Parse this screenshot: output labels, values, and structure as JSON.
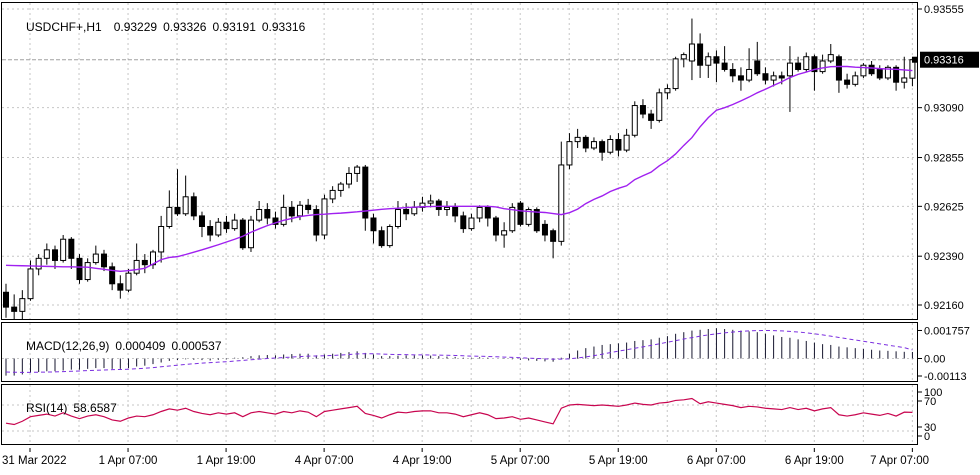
{
  "header": {
    "symbol": "USDCHF+,H1",
    "open": "0.93229",
    "high": "0.93326",
    "low": "0.93191",
    "close": "0.93316"
  },
  "indicators": {
    "macd": {
      "label": "MACD(12,26,9)",
      "main_value": "0.000409",
      "signal_value": "0.000537"
    },
    "rsi": {
      "label": "RSI(14)",
      "value": "58.6587"
    }
  },
  "price_axis": {
    "ticks": [
      {
        "label": "0.93555",
        "value": 0.93555
      },
      {
        "label": "0.93090",
        "value": 0.9309
      },
      {
        "label": "0.92855",
        "value": 0.92855
      },
      {
        "label": "0.92625",
        "value": 0.92625
      },
      {
        "label": "0.92390",
        "value": 0.9239
      },
      {
        "label": "0.92160",
        "value": 0.9216
      }
    ],
    "current": {
      "label": "0.93316",
      "value": 0.93316
    }
  },
  "macd_axis": {
    "ticks": [
      {
        "label": "0.001757",
        "value": 0.001757
      },
      {
        "label": "0.00",
        "value": 0
      },
      {
        "label": "-0.00113",
        "value": -0.00113
      }
    ]
  },
  "rsi_axis": {
    "ticks": [
      {
        "label": "100",
        "value": 100
      },
      {
        "label": "70",
        "value": 70
      },
      {
        "label": "30",
        "value": 30
      },
      {
        "label": "0",
        "value": 0
      }
    ],
    "gridlines": [
      70,
      30
    ]
  },
  "time_axis": {
    "labels": [
      "31 Mar 2022",
      "1 Apr 07:00",
      "1 Apr 19:00",
      "4 Apr 07:00",
      "4 Apr 19:00",
      "5 Apr 07:00",
      "5 Apr 19:00",
      "6 Apr 07:00",
      "6 Apr 19:00",
      "7 Apr 07:00"
    ]
  },
  "colors": {
    "background": "#ffffff",
    "border": "#000000",
    "grid": "#c6c6c6",
    "candle_up_fill": "#ffffff",
    "candle_down_fill": "#000000",
    "candle_stroke": "#000000",
    "ma_line": "#a020f0",
    "macd_histogram": "#16162e",
    "macd_signal": "#7b2fe0",
    "rsi_line": "#c8054f",
    "price_line": "#a0a0a0",
    "price_badge_bg": "#000000",
    "price_badge_text": "#ffffff",
    "axis_text": "#000000"
  },
  "chart_data": [
    {
      "type": "candlestick",
      "title": "USDCHF+ H1",
      "ohlc_current": {
        "open": 0.93229,
        "high": 0.93326,
        "low": 0.93191,
        "close": 0.93316
      },
      "ylim": [
        0.92094,
        0.93583
      ],
      "y_ticks": [
        0.93555,
        0.9309,
        0.92855,
        0.92625,
        0.9239,
        0.9216
      ],
      "grid": true,
      "candles": [
        [
          0.9222,
          0.9226,
          0.921,
          0.9215
        ],
        [
          0.9215,
          0.9221,
          0.9208,
          0.9213
        ],
        [
          0.9213,
          0.9223,
          0.9209,
          0.9219
        ],
        [
          0.9219,
          0.9237,
          0.9218,
          0.9233
        ],
        [
          0.9233,
          0.924,
          0.923,
          0.9238
        ],
        [
          0.9238,
          0.9245,
          0.9235,
          0.9242
        ],
        [
          0.9242,
          0.9244,
          0.9233,
          0.9237
        ],
        [
          0.9237,
          0.9249,
          0.9236,
          0.9247
        ],
        [
          0.9247,
          0.9248,
          0.9233,
          0.9238
        ],
        [
          0.9238,
          0.924,
          0.9226,
          0.9228
        ],
        [
          0.9228,
          0.9238,
          0.9227,
          0.9236
        ],
        [
          0.9236,
          0.9244,
          0.9235,
          0.924
        ],
        [
          0.924,
          0.9242,
          0.9232,
          0.9234
        ],
        [
          0.9234,
          0.9236,
          0.9223,
          0.9226
        ],
        [
          0.9226,
          0.923,
          0.9219,
          0.9223
        ],
        [
          0.9223,
          0.9233,
          0.9222,
          0.9231
        ],
        [
          0.9231,
          0.9245,
          0.923,
          0.9237
        ],
        [
          0.9237,
          0.924,
          0.9231,
          0.9235
        ],
        [
          0.9235,
          0.9242,
          0.9233,
          0.9241
        ],
        [
          0.9241,
          0.9258,
          0.9236,
          0.9253
        ],
        [
          0.9253,
          0.927,
          0.9252,
          0.9262
        ],
        [
          0.9262,
          0.928,
          0.9258,
          0.9259
        ],
        [
          0.9259,
          0.9277,
          0.9258,
          0.9267
        ],
        [
          0.9267,
          0.9269,
          0.9256,
          0.9258
        ],
        [
          0.9258,
          0.926,
          0.9248,
          0.9253
        ],
        [
          0.9253,
          0.9256,
          0.9246,
          0.9249
        ],
        [
          0.9249,
          0.9257,
          0.9248,
          0.9255
        ],
        [
          0.9255,
          0.9258,
          0.925,
          0.9252
        ],
        [
          0.9252,
          0.9259,
          0.9251,
          0.9256
        ],
        [
          0.9256,
          0.9257,
          0.9242,
          0.9243
        ],
        [
          0.9243,
          0.9258,
          0.9241,
          0.9256
        ],
        [
          0.9256,
          0.9265,
          0.9255,
          0.9261
        ],
        [
          0.9261,
          0.9264,
          0.9254,
          0.9257
        ],
        [
          0.9257,
          0.926,
          0.9252,
          0.9254
        ],
        [
          0.9254,
          0.9268,
          0.9253,
          0.9262
        ],
        [
          0.9262,
          0.9265,
          0.9255,
          0.9258
        ],
        [
          0.9258,
          0.9265,
          0.9256,
          0.9263
        ],
        [
          0.9263,
          0.9266,
          0.9259,
          0.9261
        ],
        [
          0.9261,
          0.9263,
          0.9246,
          0.9249
        ],
        [
          0.9249,
          0.9268,
          0.9247,
          0.9266
        ],
        [
          0.9266,
          0.9272,
          0.9264,
          0.927
        ],
        [
          0.927,
          0.9274,
          0.9267,
          0.9273
        ],
        [
          0.9273,
          0.9281,
          0.9271,
          0.9278
        ],
        [
          0.9278,
          0.9282,
          0.9274,
          0.9281
        ],
        [
          0.9281,
          0.9282,
          0.9251,
          0.9257
        ],
        [
          0.9257,
          0.9259,
          0.9245,
          0.9251
        ],
        [
          0.9251,
          0.9253,
          0.9243,
          0.9244
        ],
        [
          0.9244,
          0.9254,
          0.9243,
          0.9253
        ],
        [
          0.9253,
          0.9265,
          0.9252,
          0.9261
        ],
        [
          0.9261,
          0.9264,
          0.9256,
          0.9259
        ],
        [
          0.9259,
          0.9265,
          0.9258,
          0.9262
        ],
        [
          0.9262,
          0.9267,
          0.926,
          0.9264
        ],
        [
          0.9264,
          0.9268,
          0.9262,
          0.9265
        ],
        [
          0.9265,
          0.9266,
          0.9258,
          0.9261
        ],
        [
          0.9261,
          0.9265,
          0.9258,
          0.9262
        ],
        [
          0.9262,
          0.9264,
          0.9255,
          0.9258
        ],
        [
          0.9258,
          0.926,
          0.925,
          0.9252
        ],
        [
          0.9252,
          0.9259,
          0.9251,
          0.9257
        ],
        [
          0.9257,
          0.9263,
          0.9255,
          0.9262
        ],
        [
          0.9262,
          0.9263,
          0.9253,
          0.9257
        ],
        [
          0.9257,
          0.9258,
          0.9246,
          0.9249
        ],
        [
          0.9249,
          0.9255,
          0.9243,
          0.9251
        ],
        [
          0.9251,
          0.9264,
          0.925,
          0.9262
        ],
        [
          0.9264,
          0.9265,
          0.9253,
          0.9254
        ],
        [
          0.9254,
          0.9262,
          0.9253,
          0.9261
        ],
        [
          0.9261,
          0.9262,
          0.925,
          0.9251
        ],
        [
          0.9254,
          0.9256,
          0.9246,
          0.9249
        ],
        [
          0.9251,
          0.9252,
          0.9238,
          0.9246
        ],
        [
          0.9246,
          0.9293,
          0.9244,
          0.9282
        ],
        [
          0.9282,
          0.9297,
          0.928,
          0.9293
        ],
        [
          0.9293,
          0.9299,
          0.929,
          0.9295
        ],
        [
          0.9295,
          0.9296,
          0.9288,
          0.929
        ],
        [
          0.929,
          0.9295,
          0.9289,
          0.9293
        ],
        [
          0.9293,
          0.9294,
          0.9284,
          0.9288
        ],
        [
          0.9288,
          0.9296,
          0.9287,
          0.9294
        ],
        [
          0.9294,
          0.9297,
          0.9286,
          0.9289
        ],
        [
          0.9289,
          0.9299,
          0.9288,
          0.9296
        ],
        [
          0.9296,
          0.9312,
          0.9295,
          0.931
        ],
        [
          0.931,
          0.9313,
          0.9304,
          0.9306
        ],
        [
          0.9306,
          0.9308,
          0.9299,
          0.9303
        ],
        [
          0.9303,
          0.9318,
          0.9302,
          0.9316
        ],
        [
          0.9316,
          0.932,
          0.9313,
          0.9318
        ],
        [
          0.9318,
          0.9333,
          0.9317,
          0.9332
        ],
        [
          0.9332,
          0.9335,
          0.9328,
          0.9334
        ],
        [
          0.9331,
          0.9351,
          0.9322,
          0.9339
        ],
        [
          0.9339,
          0.9344,
          0.9323,
          0.9329
        ],
        [
          0.9329,
          0.9335,
          0.9323,
          0.9333
        ],
        [
          0.9333,
          0.9336,
          0.9321,
          0.933
        ],
        [
          0.933,
          0.9338,
          0.9326,
          0.9327
        ],
        [
          0.9327,
          0.933,
          0.9321,
          0.9324
        ],
        [
          0.9324,
          0.9328,
          0.9317,
          0.9322
        ],
        [
          0.9322,
          0.9337,
          0.9321,
          0.9327
        ],
        [
          0.9331,
          0.934,
          0.9324,
          0.9325
        ],
        [
          0.9325,
          0.9328,
          0.932,
          0.9322
        ],
        [
          0.9322,
          0.9326,
          0.9319,
          0.9324
        ],
        [
          0.9324,
          0.9326,
          0.932,
          0.9323
        ],
        [
          0.9324,
          0.9338,
          0.9307,
          0.933
        ],
        [
          0.933,
          0.9333,
          0.9326,
          0.9327
        ],
        [
          0.9327,
          0.9335,
          0.9326,
          0.9333
        ],
        [
          0.9333,
          0.9334,
          0.9317,
          0.9326
        ],
        [
          0.9326,
          0.9334,
          0.9325,
          0.9331
        ],
        [
          0.9331,
          0.9339,
          0.933,
          0.9334
        ],
        [
          0.9333,
          0.9334,
          0.9316,
          0.9322
        ],
        [
          0.9322,
          0.9325,
          0.9318,
          0.932
        ],
        [
          0.932,
          0.9326,
          0.9319,
          0.9324
        ],
        [
          0.9324,
          0.933,
          0.9323,
          0.9329
        ],
        [
          0.9329,
          0.9331,
          0.9324,
          0.9325
        ],
        [
          0.9327,
          0.9329,
          0.9322,
          0.9323
        ],
        [
          0.9323,
          0.9329,
          0.9322,
          0.9328
        ],
        [
          0.9328,
          0.9329,
          0.9317,
          0.9321
        ],
        [
          0.9321,
          0.9333,
          0.9318,
          0.9323
        ],
        [
          0.93229,
          0.93326,
          0.93191,
          0.93316
        ]
      ],
      "ma": {
        "name": "moving-average",
        "color": "#a020f0",
        "values": [
          0.92347,
          0.92346,
          0.92345,
          0.92344,
          0.92343,
          0.92342,
          0.92341,
          0.9234,
          0.9234,
          0.92339,
          0.92338,
          0.92333,
          0.92328,
          0.92323,
          0.92319,
          0.92322,
          0.92327,
          0.92333,
          0.92353,
          0.92374,
          0.92384,
          0.92388,
          0.92398,
          0.92409,
          0.9242,
          0.92432,
          0.92444,
          0.92457,
          0.9247,
          0.92484,
          0.92503,
          0.92519,
          0.92534,
          0.92547,
          0.92559,
          0.92568,
          0.92577,
          0.92582,
          0.92586,
          0.92588,
          0.92591,
          0.92593,
          0.92596,
          0.92599,
          0.92603,
          0.92607,
          0.92611,
          0.92614,
          0.92616,
          0.92619,
          0.92621,
          0.92623,
          0.92624,
          0.92625,
          0.92625,
          0.92625,
          0.92625,
          0.92625,
          0.92625,
          0.92625,
          0.92622,
          0.92614,
          0.92609,
          0.92604,
          0.92601,
          0.92598,
          0.92596,
          0.92591,
          0.92586,
          0.92595,
          0.92612,
          0.92638,
          0.92658,
          0.92674,
          0.92695,
          0.9271,
          0.92722,
          0.92751,
          0.92769,
          0.92786,
          0.92816,
          0.9284,
          0.92872,
          0.92912,
          0.92949,
          0.93,
          0.93043,
          0.93078,
          0.9309,
          0.93105,
          0.93122,
          0.9314,
          0.9316,
          0.93177,
          0.93195,
          0.93212,
          0.93232,
          0.93247,
          0.93258,
          0.9327,
          0.93277,
          0.93283,
          0.93284,
          0.93284,
          0.93281,
          0.93279,
          0.93277,
          0.93274,
          0.93272,
          0.93271,
          0.93268,
          0.93265
        ]
      }
    },
    {
      "type": "bar",
      "title": "MACD(12,26,9)",
      "unit": 0.0001,
      "ylim": [
        -0.00125,
        0.0021
      ],
      "y_ticks": [
        0.001757,
        0,
        -0.00113
      ],
      "last_main": 0.000409,
      "last_signal": 0.000537,
      "histogram_x1e4": [
        -10.7,
        -10.7,
        -10,
        -9,
        -8.5,
        -8,
        -8,
        -7.5,
        -7,
        -7,
        -6.5,
        -6,
        -6,
        -6.5,
        -6.5,
        -6,
        -5,
        -4.5,
        -3.5,
        -2.5,
        -1.5,
        -1,
        -0.5,
        -0.8,
        -1,
        -1.2,
        -0.8,
        -0.5,
        0.5,
        0.8,
        1.5,
        2,
        2.2,
        2,
        2.5,
        2.8,
        3,
        3,
        2,
        2.5,
        3,
        3.5,
        4,
        4.5,
        3.5,
        2.5,
        1.5,
        1.5,
        1.8,
        2,
        2,
        2,
        1.8,
        1.5,
        1.2,
        1,
        0.5,
        0.5,
        0.8,
        0.5,
        0,
        -0.3,
        -0.5,
        -0.8,
        -1.2,
        -1.5,
        -1.8,
        -2,
        0.5,
        3,
        5,
        6.5,
        7.5,
        8.5,
        9,
        9.5,
        10,
        11,
        11.5,
        12,
        13,
        14,
        15.5,
        16.5,
        17.5,
        18,
        18.5,
        19,
        18.5,
        18,
        17.5,
        17,
        16.5,
        15.5,
        14.5,
        13.5,
        13,
        12,
        11,
        10,
        9,
        8.5,
        7.5,
        7,
        6.5,
        6,
        5.5,
        5,
        4.8,
        4.5,
        4.2,
        4.09
      ],
      "signal_x1e4": [
        -8.5,
        -8.6,
        -8.7,
        -8.7,
        -8.6,
        -8.5,
        -8.4,
        -8.2,
        -8,
        -7.8,
        -7.6,
        -7.4,
        -7.2,
        -7,
        -6.9,
        -6.7,
        -6.4,
        -6.1,
        -5.7,
        -5.2,
        -4.7,
        -4.2,
        -3.7,
        -3.3,
        -2.9,
        -2.6,
        -2.3,
        -2,
        -1.6,
        -1.2,
        -0.8,
        -0.4,
        0,
        0.3,
        0.6,
        0.9,
        1.2,
        1.5,
        1.6,
        1.7,
        1.9,
        2.2,
        2.5,
        2.9,
        3,
        3,
        2.8,
        2.6,
        2.5,
        2.4,
        2.3,
        2.3,
        2.2,
        2.1,
        2,
        1.9,
        1.7,
        1.5,
        1.4,
        1.3,
        1.1,
        0.9,
        0.7,
        0.5,
        0.2,
        0,
        -0.2,
        -0.4,
        -0.4,
        -0.2,
        0.3,
        1,
        1.8,
        2.7,
        3.7,
        4.6,
        5.5,
        6.4,
        7.3,
        8.2,
        9.2,
        10.2,
        11.2,
        12.2,
        13.1,
        14,
        14.8,
        15.5,
        16.1,
        16.6,
        17,
        17.3,
        17.5,
        17.57,
        17.5,
        17.3,
        17,
        16.6,
        16.1,
        15.5,
        14.8,
        14,
        13.2,
        12.4,
        11.6,
        10.8,
        10,
        9.2,
        8.4,
        7.6,
        6.8,
        5.37
      ]
    },
    {
      "type": "line",
      "title": "RSI(14)",
      "ylim": [
        0,
        100
      ],
      "levels": [
        70,
        30
      ],
      "last_value": 58.6587,
      "values": [
        42,
        40,
        45,
        52,
        54,
        56,
        53,
        58,
        53,
        49,
        53,
        55,
        52,
        47,
        45,
        50,
        53,
        52,
        55,
        60,
        64,
        62,
        65,
        60,
        57,
        55,
        58,
        56,
        58,
        52,
        58,
        60,
        58,
        56,
        60,
        58,
        61,
        59,
        52,
        60,
        62,
        64,
        66,
        68,
        57,
        54,
        50,
        55,
        59,
        58,
        60,
        61,
        61,
        58,
        58,
        56,
        52,
        55,
        58,
        55,
        49,
        50,
        52,
        48,
        50,
        47,
        44,
        41,
        65,
        70,
        71,
        70,
        69,
        70,
        69,
        68,
        70,
        73,
        71,
        70,
        73,
        74,
        77,
        78,
        80,
        72,
        75,
        73,
        71,
        69,
        66,
        68,
        67,
        65,
        64,
        63,
        66,
        63,
        65,
        61,
        64,
        66,
        55,
        53,
        55,
        58,
        56,
        54,
        57,
        53,
        59,
        58.66
      ]
    }
  ]
}
